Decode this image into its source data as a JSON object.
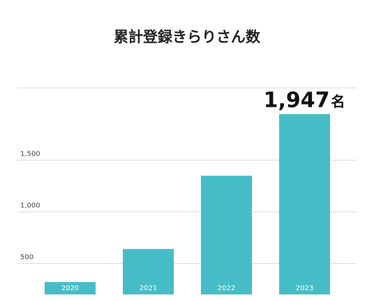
{
  "chart_data": {
    "type": "bar",
    "title": "累計登録きらりさん数",
    "categories": [
      "2020",
      "2021",
      "2022",
      "2023"
    ],
    "values": [
      320,
      640,
      1350,
      1947
    ],
    "y_ticks": [
      500,
      1000,
      1500
    ],
    "y_tick_labels": [
      "500",
      "1,000",
      "1,500"
    ],
    "ylim": [
      200,
      2200
    ],
    "grid": true,
    "bar_color": "#46bdc6",
    "grid_color": "#d9d9d9",
    "highlight_label": {
      "value_text": "1,947",
      "unit": "名",
      "category": "2023"
    }
  }
}
